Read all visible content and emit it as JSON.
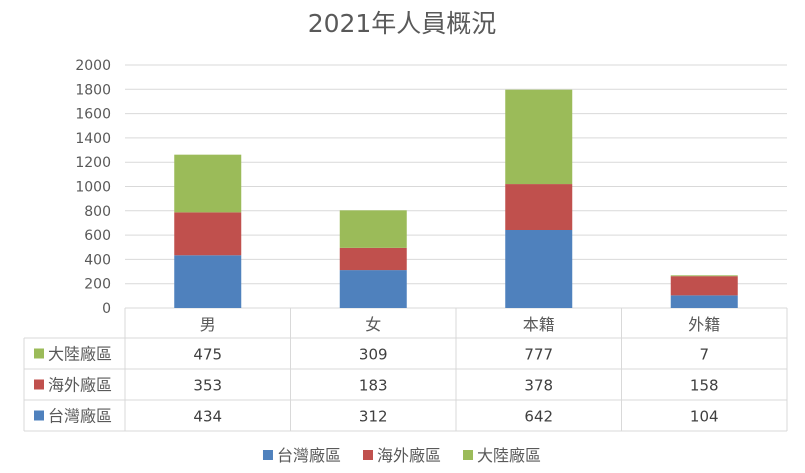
{
  "chart_data": {
    "type": "bar",
    "stacked": true,
    "title": "2021年人員概況",
    "categories": [
      "男",
      "女",
      "本籍",
      "外籍"
    ],
    "ylim": [
      0,
      2000
    ],
    "yticks": [
      0,
      200,
      400,
      600,
      800,
      1000,
      1200,
      1400,
      1600,
      1800,
      2000
    ],
    "grid": true,
    "legend_position": "bottom",
    "data_table": true,
    "series": [
      {
        "name": "台灣廠區",
        "color": "#4F81BD",
        "values": [
          434,
          312,
          642,
          104
        ]
      },
      {
        "name": "海外廠區",
        "color": "#C0504D",
        "values": [
          353,
          183,
          378,
          158
        ]
      },
      {
        "name": "大陸廠區",
        "color": "#9BBB59",
        "values": [
          475,
          309,
          777,
          7
        ]
      }
    ]
  }
}
